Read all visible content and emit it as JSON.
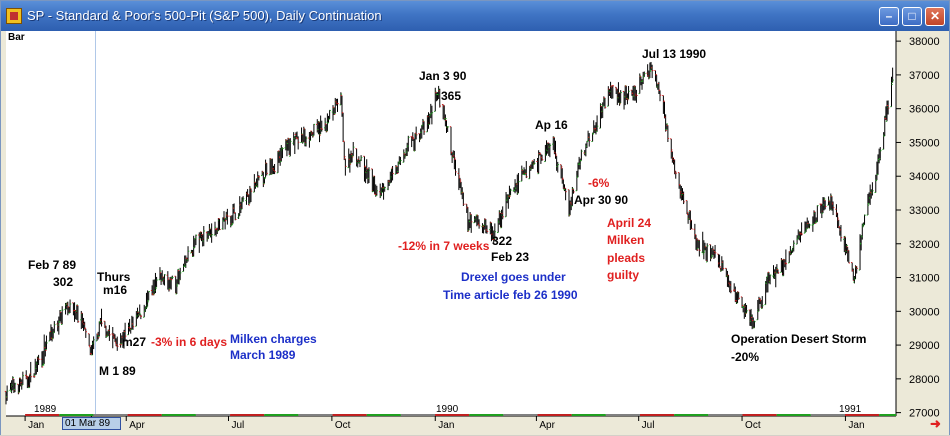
{
  "window": {
    "title": "SP - Standard & Poor's 500-Pit (S&P 500), Daily Continuation",
    "min_icon": "minimize-icon",
    "max_icon": "maximize-icon",
    "close_icon": "close-icon"
  },
  "chart_data": {
    "type": "ohlc-bar",
    "title": "SP - Standard & Poor's 500-Pit (S&P 500), Daily Continuation",
    "bar_type_label": "Bar",
    "x_range": [
      "1988-12-15",
      "1991-02-15"
    ],
    "ylim": [
      26900,
      38300
    ],
    "y_ticks": [
      27000,
      28000,
      29000,
      30000,
      31000,
      32000,
      33000,
      34000,
      35000,
      36000,
      37000,
      38000
    ],
    "x_month_labels": [
      {
        "label": "Jan",
        "date": "1989-01-01"
      },
      {
        "label": "01 Mar 89",
        "date": "1989-03-01"
      },
      {
        "label": "Apr",
        "date": "1989-04-01"
      },
      {
        "label": "Jul",
        "date": "1989-07-01"
      },
      {
        "label": "Oct",
        "date": "1989-10-01"
      },
      {
        "label": "Jan",
        "date": "1990-01-01"
      },
      {
        "label": "Apr",
        "date": "1990-04-01"
      },
      {
        "label": "Jul",
        "date": "1990-07-01"
      },
      {
        "label": "Oct",
        "date": "1990-10-01"
      },
      {
        "label": "Jan",
        "date": "1991-01-01"
      }
    ],
    "year_labels": [
      "1989",
      "1990",
      "1991"
    ],
    "cursor_date": "01 Mar 89",
    "price_path": [
      [
        "1988-12-15",
        27600
      ],
      [
        "1989-01-05",
        28000
      ],
      [
        "1989-01-20",
        29000
      ],
      [
        "1989-02-07",
        30200
      ],
      [
        "1989-02-20",
        29800
      ],
      [
        "1989-03-01",
        28700
      ],
      [
        "1989-03-10",
        29700
      ],
      [
        "1989-03-20",
        29200
      ],
      [
        "1989-03-27",
        29100
      ],
      [
        "1989-04-15",
        30000
      ],
      [
        "1989-05-01",
        31000
      ],
      [
        "1989-05-15",
        30800
      ],
      [
        "1989-06-01",
        32000
      ],
      [
        "1989-06-20",
        32500
      ],
      [
        "1989-07-10",
        33000
      ],
      [
        "1989-08-01",
        34000
      ],
      [
        "1989-08-25",
        35000
      ],
      [
        "1989-09-10",
        35200
      ],
      [
        "1989-09-25",
        35500
      ],
      [
        "1989-10-09",
        36300
      ],
      [
        "1989-10-13",
        34200
      ],
      [
        "1989-10-20",
        34800
      ],
      [
        "1989-11-10",
        33500
      ],
      [
        "1989-11-25",
        34000
      ],
      [
        "1989-12-10",
        35000
      ],
      [
        "1989-12-25",
        35500
      ],
      [
        "1990-01-03",
        36500
      ],
      [
        "1990-01-10",
        35500
      ],
      [
        "1990-01-30",
        32700
      ],
      [
        "1990-02-10",
        32600
      ],
      [
        "1990-02-23",
        32200
      ],
      [
        "1990-03-05",
        33300
      ],
      [
        "1990-03-20",
        34000
      ],
      [
        "1990-04-02",
        34500
      ],
      [
        "1990-04-16",
        34900
      ],
      [
        "1990-04-30",
        33000
      ],
      [
        "1990-05-10",
        34500
      ],
      [
        "1990-05-25",
        35700
      ],
      [
        "1990-06-05",
        36500
      ],
      [
        "1990-06-25",
        36300
      ],
      [
        "1990-07-13",
        37300
      ],
      [
        "1990-07-25",
        35700
      ],
      [
        "1990-08-05",
        33800
      ],
      [
        "1990-08-22",
        32000
      ],
      [
        "1990-09-10",
        31500
      ],
      [
        "1990-09-25",
        30500
      ],
      [
        "1990-10-11",
        29700
      ],
      [
        "1990-10-25",
        31000
      ],
      [
        "1990-11-10",
        31500
      ],
      [
        "1990-11-25",
        32500
      ],
      [
        "1990-12-10",
        33000
      ],
      [
        "1990-12-20",
        33300
      ],
      [
        "1991-01-09",
        31000
      ],
      [
        "1991-01-20",
        33000
      ],
      [
        "1991-01-31",
        34500
      ],
      [
        "1991-02-12",
        37000
      ]
    ]
  },
  "annotations": [
    {
      "id": "feb789",
      "text": "Feb 7 89",
      "color": "#000000"
    },
    {
      "id": "v302",
      "text": "302",
      "color": "#000000"
    },
    {
      "id": "thurs",
      "text": "Thurs",
      "color": "#000000"
    },
    {
      "id": "m16",
      "text": "m16",
      "color": "#000000"
    },
    {
      "id": "m27",
      "text": "m27",
      "color": "#000000"
    },
    {
      "id": "m189",
      "text": "M 1 89",
      "color": "#000000"
    },
    {
      "id": "pct3",
      "text": "-3% in 6 days",
      "color": "#e02020"
    },
    {
      "id": "milken1",
      "text": "Milken charges",
      "color": "#1c2fc8"
    },
    {
      "id": "milken2",
      "text": "March 1989",
      "color": "#1c2fc8"
    },
    {
      "id": "jan390",
      "text": "Jan 3 90",
      "color": "#000000"
    },
    {
      "id": "v365",
      "text": "365",
      "color": "#000000"
    },
    {
      "id": "pct12",
      "text": "-12% in 7 weeks",
      "color": "#e02020"
    },
    {
      "id": "v322",
      "text": "322",
      "color": "#000000"
    },
    {
      "id": "feb23",
      "text": "Feb 23",
      "color": "#000000"
    },
    {
      "id": "drexel1",
      "text": "Drexel goes under",
      "color": "#1c2fc8"
    },
    {
      "id": "drexel2",
      "text": "Time article feb 26 1990",
      "color": "#1c2fc8"
    },
    {
      "id": "ap16",
      "text": "Ap 16",
      "color": "#000000"
    },
    {
      "id": "pct6",
      "text": "-6%",
      "color": "#e02020"
    },
    {
      "id": "apr3090",
      "text": "Apr 30 90",
      "color": "#000000"
    },
    {
      "id": "april24a",
      "text": "April 24",
      "color": "#e02020"
    },
    {
      "id": "april24b",
      "text": "Milken",
      "color": "#e02020"
    },
    {
      "id": "april24c",
      "text": "pleads",
      "color": "#e02020"
    },
    {
      "id": "april24d",
      "text": "guilty",
      "color": "#e02020"
    },
    {
      "id": "jul1390",
      "text": "Jul 13 1990",
      "color": "#000000"
    },
    {
      "id": "desert1",
      "text": "Operation Desert Storm",
      "color": "#000000"
    },
    {
      "id": "desert2",
      "text": "-20%",
      "color": "#000000"
    }
  ],
  "scroll_arrow_icon": "right-arrow-icon"
}
